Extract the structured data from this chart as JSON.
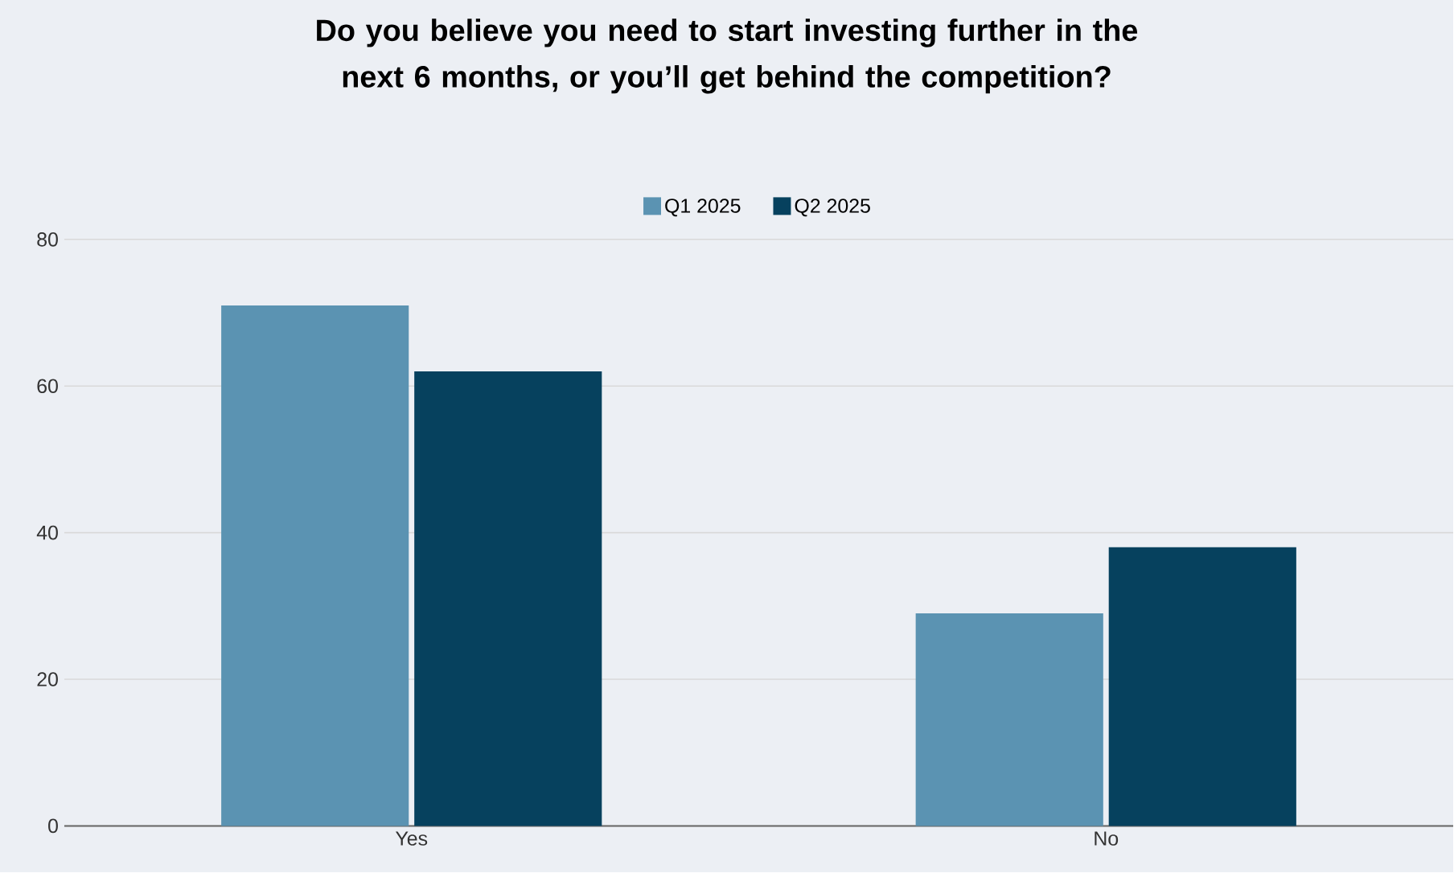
{
  "chart_data": {
    "type": "bar",
    "title": "Do you believe you need to start investing further in the next 6 months, or you’ll get behind the competition?",
    "categories": [
      "Yes",
      "No"
    ],
    "series": [
      {
        "name": "Q1 2025",
        "color": "#5b93b2",
        "values": [
          71,
          29
        ]
      },
      {
        "name": "Q2 2025",
        "color": "#06415e",
        "values": [
          62,
          38
        ]
      }
    ],
    "ylim": [
      0,
      80
    ],
    "yticks": [
      0,
      20,
      40,
      60,
      80
    ],
    "grid": "y",
    "legend": "top"
  }
}
